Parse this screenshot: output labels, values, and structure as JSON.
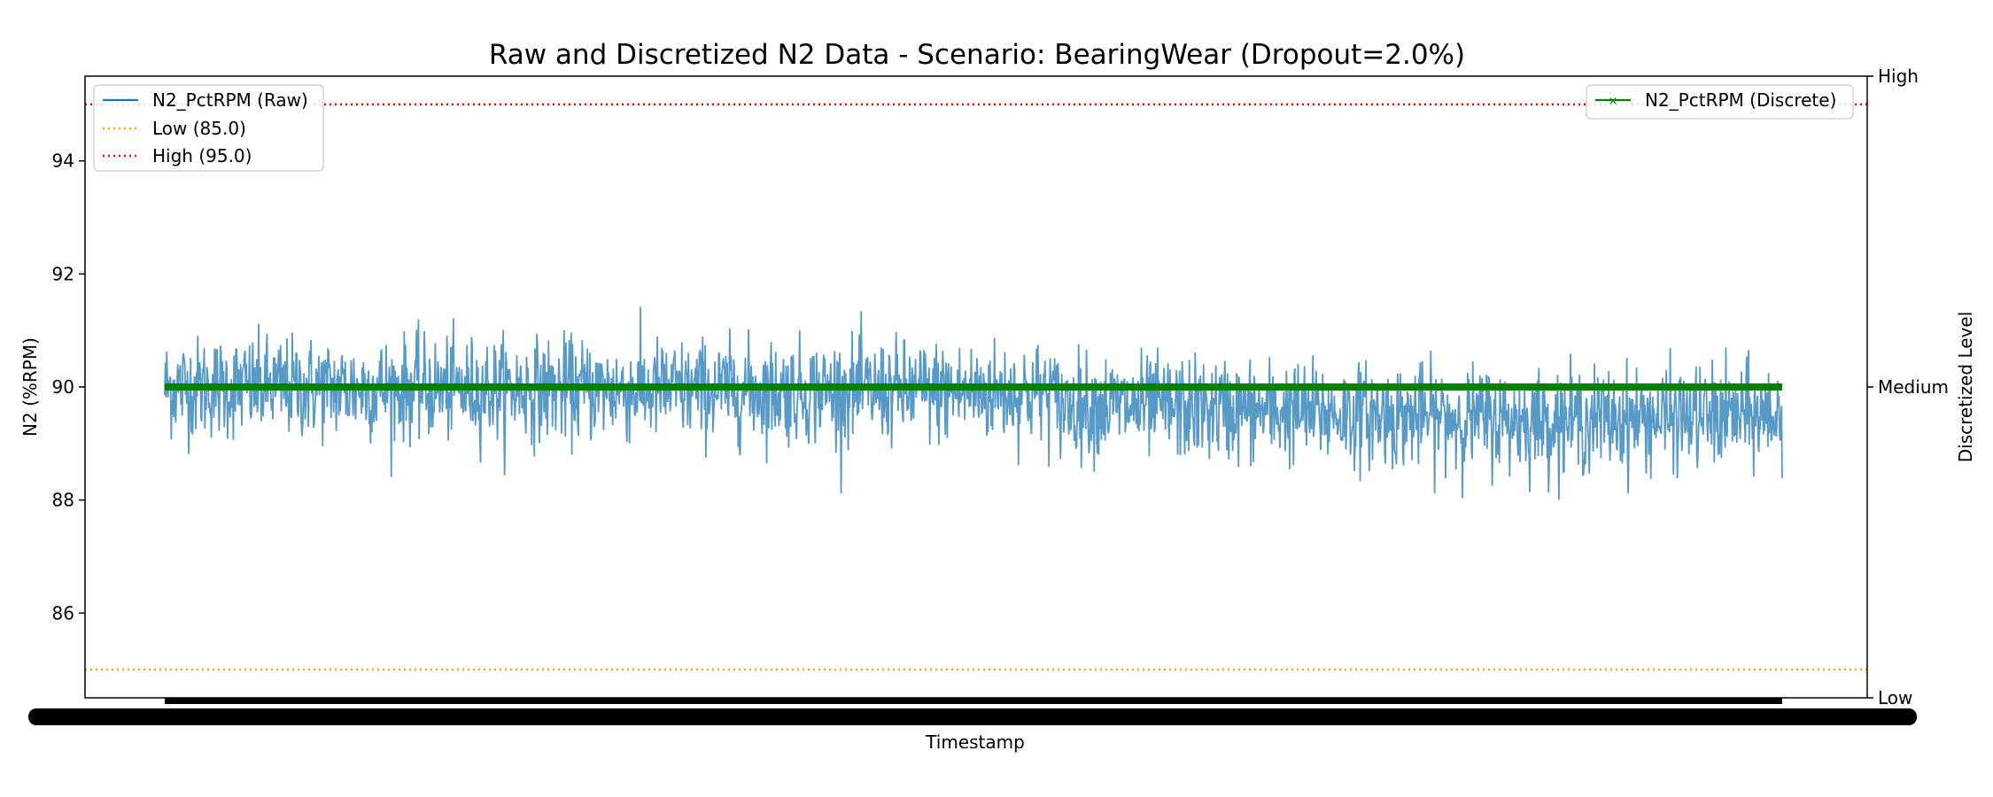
{
  "chart_data": {
    "type": "line",
    "title": "Raw and Discretized N2 Data - Scenario: BearingWear (Dropout=2.0%)",
    "xlabel": "Timestamp",
    "ylabel": "N2 (%RPM)",
    "y2label": "Discretized Level",
    "ylim": [
      84.5,
      95.5
    ],
    "yticks": [
      86,
      88,
      90,
      92,
      94
    ],
    "y2_categories": [
      "Low",
      "Medium",
      "High"
    ],
    "grid": false,
    "raw_series": {
      "name": "N2_PctRPM (Raw)",
      "color": "#1f77b4",
      "baseline_segments": [
        {
          "from": 0.0,
          "to": 0.55,
          "start": 90.0,
          "end": 89.9
        },
        {
          "from": 0.55,
          "to": 0.85,
          "start": 89.7,
          "end": 89.4
        },
        {
          "from": 0.85,
          "to": 1.0,
          "start": 89.4,
          "end": 89.5
        }
      ],
      "noise_sd": 0.45,
      "observed_range": [
        88.0,
        91.6
      ]
    },
    "discrete_series": {
      "name": "N2_PctRPM (Discrete)",
      "color": "#008000",
      "level": "Medium"
    },
    "thresholds": [
      {
        "name": "Low (85.0)",
        "value": 85.0,
        "color": "#ffa500"
      },
      {
        "name": "High (95.0)",
        "value": 95.0,
        "color": "#ff0000"
      }
    ],
    "legend_left_placement": "upper-left",
    "legend_right_placement": "upper-right"
  }
}
